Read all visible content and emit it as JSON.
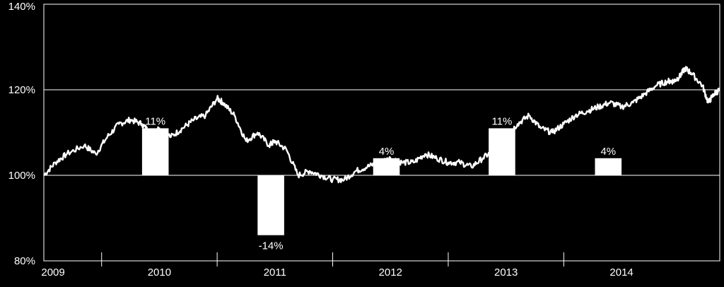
{
  "chart_data": {
    "type": "line",
    "title": "",
    "xlabel": "",
    "ylabel": "",
    "ylim": [
      80,
      140
    ],
    "y_ticks": [
      80,
      100,
      120,
      140
    ],
    "y_tick_labels": [
      "80%",
      "100%",
      "120%",
      "140%"
    ],
    "x_range": [
      2009.0,
      2014.85
    ],
    "x_tick_labels": [
      "2009",
      "2010",
      "2011",
      "2012",
      "2013",
      "2014"
    ],
    "grid": "horizontal",
    "legend": "none",
    "colors": {
      "background": "#000000",
      "line": "#ffffff",
      "bars": "#ffffff",
      "axis": "#ffffff"
    },
    "series": [
      {
        "type": "line",
        "x": [
          2009.0,
          2009.1,
          2009.2,
          2009.35,
          2009.45,
          2009.55,
          2009.65,
          2009.75,
          2009.85,
          2009.92,
          2010.0,
          2010.1,
          2010.2,
          2010.3,
          2010.4,
          2010.5,
          2010.55,
          2010.65,
          2010.75,
          2010.85,
          2010.95,
          2011.0,
          2011.1,
          2011.2,
          2011.3,
          2011.4,
          2011.5,
          2011.6,
          2011.7,
          2011.8,
          2011.9,
          2012.0,
          2012.1,
          2012.2,
          2012.3,
          2012.4,
          2012.5,
          2012.6,
          2012.7,
          2012.8,
          2012.9,
          2013.0,
          2013.1,
          2013.2,
          2013.3,
          2013.4,
          2013.5,
          2013.6,
          2013.7,
          2013.8,
          2013.9,
          2014.0,
          2014.1,
          2014.2,
          2014.3,
          2014.4,
          2014.45,
          2014.5,
          2014.55,
          2014.6,
          2014.7,
          2014.75,
          2014.8,
          2014.85
        ],
        "values": [
          100,
          103,
          105,
          107,
          105,
          109,
          112,
          113,
          112,
          110,
          111,
          109,
          111,
          113,
          114,
          118,
          117,
          114,
          108,
          110,
          107,
          108,
          106,
          100,
          101,
          100,
          99,
          99,
          101,
          102,
          103,
          104,
          103,
          103,
          105,
          104,
          103,
          103,
          102,
          104,
          106,
          109,
          112,
          114,
          111,
          110,
          112,
          114,
          115,
          116,
          117,
          116,
          117,
          119,
          121,
          122,
          122,
          123,
          125,
          124,
          121,
          117,
          119,
          120
        ]
      }
    ],
    "bars": [
      {
        "label": "11%",
        "value": 11,
        "x_start": 2009.85,
        "x_end": 2010.08
      },
      {
        "label": "-14%",
        "value": -14,
        "x_start": 2010.85,
        "x_end": 2011.08
      },
      {
        "label": "4%",
        "value": 4,
        "x_start": 2011.85,
        "x_end": 2012.08
      },
      {
        "label": "11%",
        "value": 11,
        "x_start": 2012.85,
        "x_end": 2013.08
      },
      {
        "label": "4%",
        "value": 4,
        "x_start": 2013.77,
        "x_end": 2014.0
      }
    ]
  }
}
